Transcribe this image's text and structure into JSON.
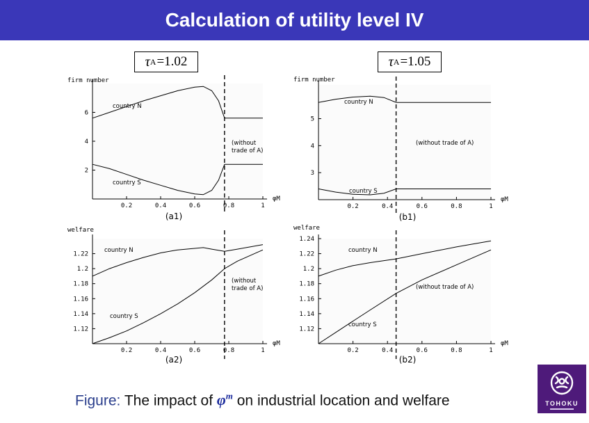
{
  "slide": {
    "title": "Calculation of utility level IV",
    "caption_prefix": "Figure:",
    "caption_before": "The impact of",
    "caption_symbol": "φ",
    "caption_symbol_sup": "m",
    "caption_after": "on industrial location and welfare",
    "logo_text": "TOHOKU",
    "tau_left": {
      "symbol": "τ",
      "sub": "A",
      "value": "=1.02"
    },
    "tau_right": {
      "symbol": "τ",
      "sub": "A",
      "value": "=1.05"
    }
  },
  "colors": {
    "banner": "#3a37b8",
    "logo": "#4e1a7a",
    "caption_prefix": "#2a3e8c"
  },
  "chart_data": [
    {
      "id": "a1",
      "type": "line",
      "panel_label": "(a1)",
      "ylabel": "firm number",
      "xlabel": "φM",
      "xlim": [
        0,
        1
      ],
      "ylim": [
        0,
        8
      ],
      "xticks": [
        0.2,
        0.4,
        0.6,
        0.8,
        1
      ],
      "xtick_labels": [
        "0.2",
        "0.4",
        "0.6",
        "0.8",
        "1"
      ],
      "yticks": [
        2,
        4,
        6
      ],
      "ytick_labels": [
        "2",
        "4",
        "6"
      ],
      "threshold": 0.775,
      "annotation": [
        "(without",
        "trade of A)"
      ],
      "series": [
        {
          "name": "country N",
          "points": [
            [
              0,
              5.6
            ],
            [
              0.1,
              6.0
            ],
            [
              0.2,
              6.4
            ],
            [
              0.3,
              6.8
            ],
            [
              0.4,
              7.15
            ],
            [
              0.5,
              7.5
            ],
            [
              0.6,
              7.75
            ],
            [
              0.65,
              7.8
            ],
            [
              0.7,
              7.5
            ],
            [
              0.74,
              6.8
            ],
            [
              0.775,
              5.6
            ],
            [
              1,
              5.6
            ]
          ]
        },
        {
          "name": "country S",
          "points": [
            [
              0,
              2.4
            ],
            [
              0.1,
              2.1
            ],
            [
              0.2,
              1.7
            ],
            [
              0.3,
              1.3
            ],
            [
              0.4,
              0.95
            ],
            [
              0.5,
              0.6
            ],
            [
              0.6,
              0.35
            ],
            [
              0.65,
              0.3
            ],
            [
              0.7,
              0.6
            ],
            [
              0.74,
              1.3
            ],
            [
              0.775,
              2.4
            ],
            [
              1,
              2.4
            ]
          ]
        }
      ]
    },
    {
      "id": "b1",
      "type": "line",
      "panel_label": "(b1)",
      "ylabel": "firm number",
      "xlabel": "φM",
      "xlim": [
        0,
        1
      ],
      "ylim": [
        2,
        6.25
      ],
      "xticks": [
        0.2,
        0.4,
        0.6,
        0.8,
        1
      ],
      "xtick_labels": [
        "0.2",
        "0.4",
        "0.6",
        "0.8",
        "1"
      ],
      "yticks": [
        3,
        4,
        5
      ],
      "ytick_labels": [
        "3",
        "4",
        "5"
      ],
      "threshold": 0.45,
      "annotation": [
        "(without trade of A)"
      ],
      "series": [
        {
          "name": "country N",
          "points": [
            [
              0,
              5.6
            ],
            [
              0.1,
              5.72
            ],
            [
              0.2,
              5.8
            ],
            [
              0.3,
              5.83
            ],
            [
              0.38,
              5.78
            ],
            [
              0.45,
              5.6
            ],
            [
              1,
              5.6
            ]
          ]
        },
        {
          "name": "country S",
          "points": [
            [
              0,
              2.4
            ],
            [
              0.1,
              2.28
            ],
            [
              0.2,
              2.2
            ],
            [
              0.3,
              2.18
            ],
            [
              0.38,
              2.24
            ],
            [
              0.45,
              2.4
            ],
            [
              1,
              2.4
            ]
          ]
        }
      ]
    },
    {
      "id": "a2",
      "type": "line",
      "panel_label": "(a2)",
      "ylabel": "welfare",
      "xlabel": "φM",
      "xlim": [
        0,
        1
      ],
      "ylim": [
        1.1,
        1.24
      ],
      "xticks": [
        0.2,
        0.4,
        0.6,
        0.8,
        1
      ],
      "xtick_labels": [
        "0.2",
        "0.4",
        "0.6",
        "0.8",
        "1"
      ],
      "yticks": [
        1.12,
        1.14,
        1.16,
        1.18,
        1.2,
        1.22
      ],
      "ytick_labels": [
        "1.12",
        "1.14",
        "1.16",
        "1.18",
        "1.2",
        "1.22"
      ],
      "threshold": 0.775,
      "annotation": [
        "(without",
        "trade of A)"
      ],
      "series": [
        {
          "name": "country N",
          "points": [
            [
              0,
              1.19
            ],
            [
              0.1,
              1.2
            ],
            [
              0.2,
              1.208
            ],
            [
              0.3,
              1.215
            ],
            [
              0.4,
              1.221
            ],
            [
              0.5,
              1.225
            ],
            [
              0.6,
              1.227
            ],
            [
              0.65,
              1.228
            ],
            [
              0.7,
              1.226
            ],
            [
              0.775,
              1.223
            ],
            [
              0.85,
              1.226
            ],
            [
              1,
              1.232
            ]
          ]
        },
        {
          "name": "country S",
          "points": [
            [
              0,
              1.1
            ],
            [
              0.1,
              1.108
            ],
            [
              0.2,
              1.117
            ],
            [
              0.3,
              1.128
            ],
            [
              0.4,
              1.14
            ],
            [
              0.5,
              1.153
            ],
            [
              0.6,
              1.168
            ],
            [
              0.7,
              1.185
            ],
            [
              0.775,
              1.2
            ],
            [
              0.85,
              1.21
            ],
            [
              1,
              1.225
            ]
          ]
        }
      ]
    },
    {
      "id": "b2",
      "type": "line",
      "panel_label": "(b2)",
      "ylabel": "welfare",
      "xlabel": "φM",
      "xlim": [
        0,
        1
      ],
      "ylim": [
        1.1,
        1.24
      ],
      "xticks": [
        0.2,
        0.4,
        0.6,
        0.8,
        1
      ],
      "xtick_labels": [
        "0.2",
        "0.4",
        "0.6",
        "0.8",
        "1"
      ],
      "yticks": [
        1.12,
        1.14,
        1.16,
        1.18,
        1.2,
        1.22,
        1.24
      ],
      "ytick_labels": [
        "1.12",
        "1.14",
        "1.16",
        "1.18",
        "1.2",
        "1.22",
        "1.24"
      ],
      "threshold": 0.45,
      "annotation": [
        "(without trade of A)"
      ],
      "series": [
        {
          "name": "country N",
          "points": [
            [
              0,
              1.19
            ],
            [
              0.1,
              1.198
            ],
            [
              0.2,
              1.204
            ],
            [
              0.3,
              1.208
            ],
            [
              0.45,
              1.213
            ],
            [
              0.6,
              1.22
            ],
            [
              0.8,
              1.229
            ],
            [
              1,
              1.237
            ]
          ]
        },
        {
          "name": "country S",
          "points": [
            [
              0,
              1.1
            ],
            [
              0.1,
              1.115
            ],
            [
              0.2,
              1.13
            ],
            [
              0.3,
              1.145
            ],
            [
              0.45,
              1.167
            ],
            [
              0.6,
              1.185
            ],
            [
              0.8,
              1.205
            ],
            [
              1,
              1.225
            ]
          ]
        }
      ]
    }
  ]
}
